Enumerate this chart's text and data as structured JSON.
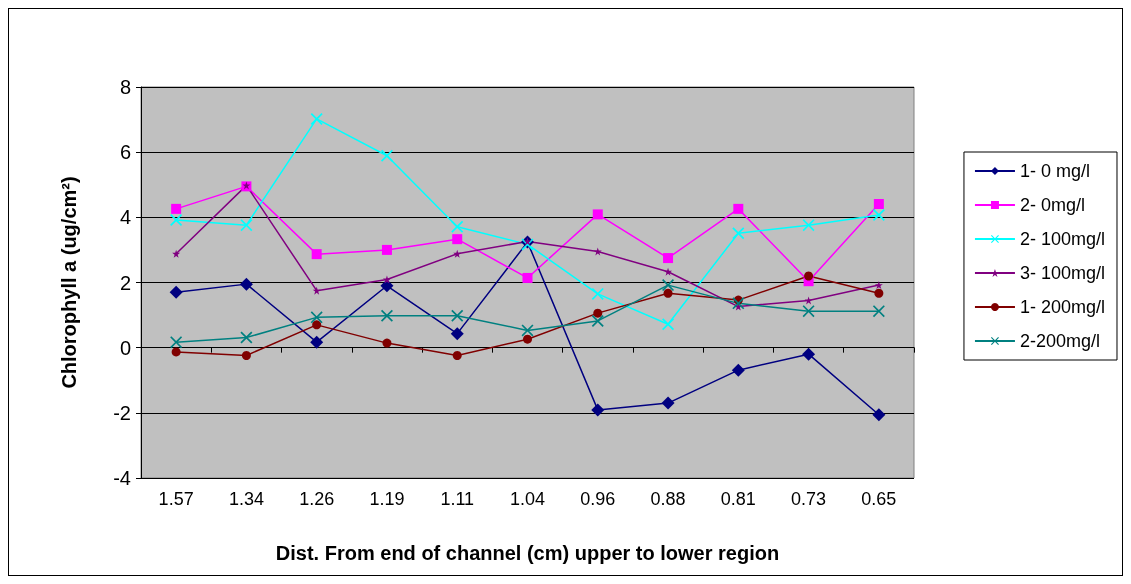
{
  "chart_data": {
    "type": "line",
    "xlabel": "Dist. From end of channel (cm) upper to lower region",
    "ylabel": "Chlorophyll a (ug/cm²)",
    "categories": [
      "1.57",
      "1.34",
      "1.26",
      "1.19",
      "1.11",
      "1.04",
      "0.96",
      "0.88",
      "0.81",
      "0.73",
      "0.65"
    ],
    "series": [
      {
        "name": "1- 0 mg/l",
        "color": "#000080",
        "marker": "diamond",
        "values": [
          1.7,
          1.95,
          0.17,
          1.9,
          0.43,
          3.24,
          -1.91,
          -1.7,
          -0.69,
          -0.2,
          -2.06
        ]
      },
      {
        "name": "2- 0mg/l",
        "color": "#ff00ff",
        "marker": "square",
        "values": [
          4.26,
          4.95,
          2.87,
          3.0,
          3.33,
          2.14,
          4.09,
          2.75,
          4.26,
          2.04,
          4.41
        ]
      },
      {
        "name": "2- 100mg/l",
        "color": "#00ffff",
        "marker": "cross",
        "values": [
          3.92,
          3.76,
          7.02,
          5.89,
          3.71,
          3.17,
          1.65,
          0.72,
          3.51,
          3.76,
          4.07
        ]
      },
      {
        "name": "3- 100mg/l",
        "color": "#800080",
        "marker": "star",
        "values": [
          2.88,
          4.98,
          1.75,
          2.09,
          2.88,
          3.26,
          2.95,
          2.33,
          1.26,
          1.45,
          1.92
        ]
      },
      {
        "name": "1- 200mg/l",
        "color": "#800000",
        "marker": "circle",
        "values": [
          -0.13,
          -0.24,
          0.7,
          0.14,
          -0.24,
          0.26,
          1.06,
          1.67,
          1.46,
          2.2,
          1.67
        ]
      },
      {
        "name": "2-200mg/l",
        "color": "#008080",
        "marker": "cross",
        "values": [
          0.17,
          0.31,
          0.93,
          0.98,
          0.98,
          0.53,
          0.82,
          1.92,
          1.36,
          1.12,
          1.12
        ]
      }
    ],
    "ylim": [
      -4,
      8
    ],
    "yticks": [
      -4,
      -2,
      0,
      2,
      4,
      6,
      8
    ],
    "grid": "y",
    "legend": "right"
  }
}
